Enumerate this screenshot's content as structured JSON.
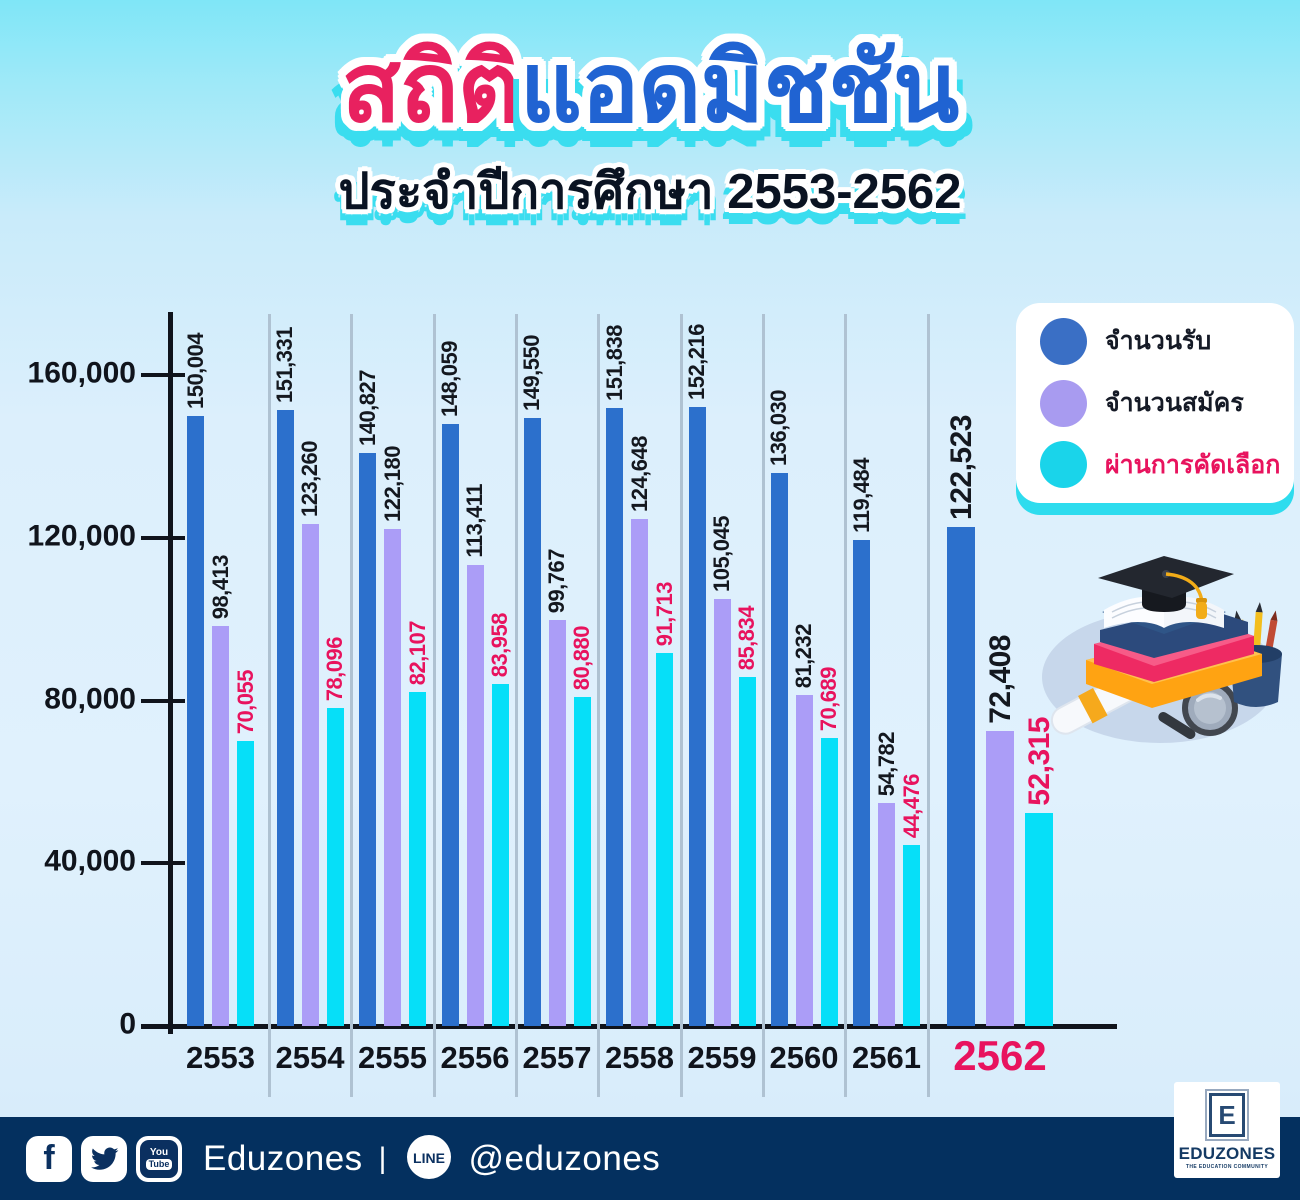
{
  "header": {
    "title_highlight": "สถิติ",
    "title_rest": "แอดมิชชัน",
    "subtitle": "ประจำปีการศึกษา 2553-2562",
    "title_highlight_color": "#E8215F",
    "title_rest_color": "#2063D2",
    "shadow_color": "#3ADDEF"
  },
  "legend": {
    "items": [
      {
        "label": "จำนวนรับ",
        "color": "#3A6FC5",
        "label_color": "#151A26"
      },
      {
        "label": "จำนวนสมัคร",
        "color": "#A89BF0",
        "label_color": "#151A26"
      },
      {
        "label": "ผ่านการคัดเลือก",
        "color": "#1AD4EA",
        "label_color": "#E8135E"
      }
    ]
  },
  "chart_data": {
    "type": "bar",
    "title": "สถิติแอดมิชชัน ประจำปีการศึกษา 2553-2562",
    "categories": [
      "2553",
      "2554",
      "2555",
      "2556",
      "2557",
      "2558",
      "2559",
      "2560",
      "2561",
      "2562"
    ],
    "highlight_category": "2562",
    "highlight_color": "#E8135E",
    "series": [
      {
        "name": "จำนวนรับ",
        "color": "#2C70CC",
        "label_color": "#14181F",
        "values": [
          150004,
          151331,
          140827,
          148059,
          149550,
          151838,
          152216,
          136030,
          119484,
          122523
        ]
      },
      {
        "name": "จำนวนสมัคร",
        "color": "#AB9DF7",
        "label_color": "#14181F",
        "values": [
          98413,
          123260,
          122180,
          113411,
          99767,
          124648,
          105045,
          81232,
          54782,
          72408
        ]
      },
      {
        "name": "ผ่านการคัดเลือก",
        "color": "#06DFF8",
        "label_color": "#E8135E",
        "values": [
          70055,
          78096,
          82107,
          83958,
          80880,
          91713,
          85834,
          70689,
          44476,
          52315
        ]
      }
    ],
    "ylim": [
      0,
      160000
    ],
    "yticks": [
      {
        "label": "0",
        "value": 0
      },
      {
        "label": "40,000",
        "value": 40000
      },
      {
        "label": "80,000",
        "value": 80000
      },
      {
        "label": "120,000",
        "value": 120000
      },
      {
        "label": "160,000",
        "value": 160000
      }
    ],
    "grid": "vertical-group-separators",
    "legend_position": "top-right",
    "value_labels": "rotated-90-above-bars"
  },
  "footer": {
    "brand": "Eduzones",
    "separator": "|",
    "line_handle": "@eduzones",
    "icons": {
      "facebook": "f",
      "youtube_top": "You",
      "youtube_box": "Tube",
      "line": "LINE"
    }
  },
  "logo": {
    "letter": "E",
    "wordmark": "EDUZONES",
    "tagline": "THE EDUCATION COMMUNITY"
  }
}
